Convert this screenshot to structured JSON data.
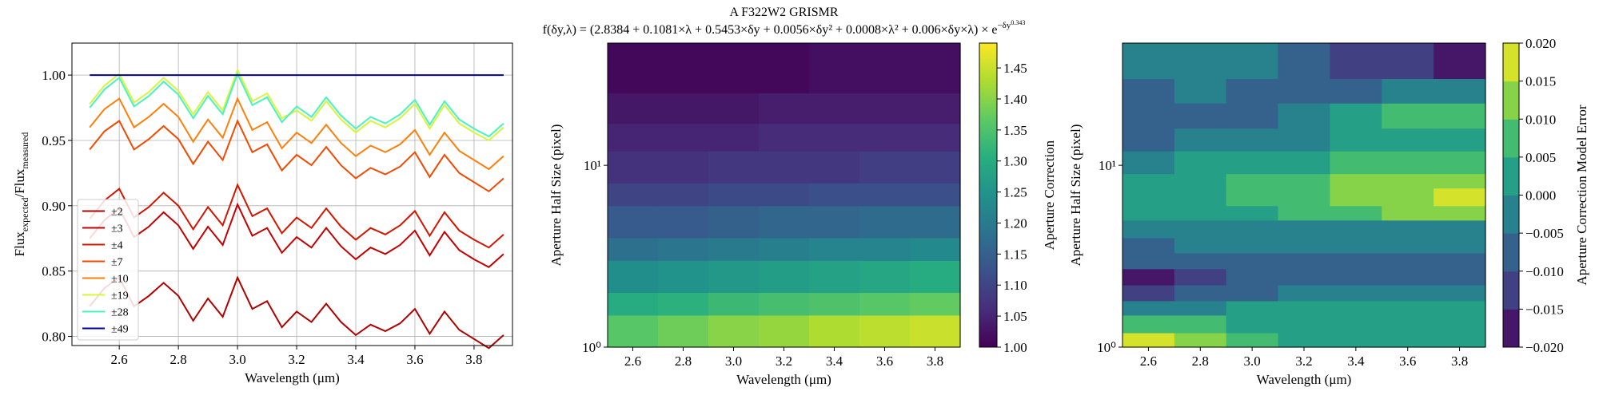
{
  "chart_data": [
    {
      "type": "line",
      "xlabel": "Wavelength (μm)",
      "ylabel": [
        "Flux",
        "expected",
        "/Flux",
        "measured"
      ],
      "x": [
        2.5,
        2.55,
        2.6,
        2.65,
        2.7,
        2.75,
        2.8,
        2.85,
        2.9,
        2.95,
        3.0,
        3.05,
        3.1,
        3.15,
        3.2,
        3.25,
        3.3,
        3.35,
        3.4,
        3.45,
        3.5,
        3.55,
        3.6,
        3.65,
        3.7,
        3.75,
        3.8,
        3.85,
        3.9
      ],
      "xlim": [
        2.44,
        3.93
      ],
      "ylim": [
        0.793,
        1.0245
      ],
      "xticks": [
        2.6,
        2.8,
        {
          "value": 3,
          "label": "3.0"
        },
        3.2,
        3.4,
        3.6,
        3.8
      ],
      "yticks": [
        {
          "value": 0.8,
          "label": "0.80"
        },
        0.85,
        {
          "value": 0.9,
          "label": "0.90"
        },
        0.95,
        {
          "value": 1,
          "label": "1.00"
        }
      ],
      "grid": true,
      "legend": "lower left",
      "series": [
        {
          "name": "±2",
          "color": "#b00000",
          "values": [
            0.823,
            0.837,
            0.845,
            0.823,
            0.831,
            0.841,
            0.831,
            0.812,
            0.829,
            0.815,
            0.845,
            0.821,
            0.827,
            0.807,
            0.819,
            0.811,
            0.825,
            0.811,
            0.801,
            0.809,
            0.804,
            0.81,
            0.821,
            0.802,
            0.819,
            0.805,
            0.798,
            0.791,
            0.801
          ]
        },
        {
          "name": "±3",
          "color": "#c40000",
          "values": [
            0.875,
            0.889,
            0.898,
            0.876,
            0.884,
            0.895,
            0.885,
            0.867,
            0.884,
            0.87,
            0.901,
            0.877,
            0.883,
            0.864,
            0.876,
            0.868,
            0.883,
            0.869,
            0.859,
            0.868,
            0.863,
            0.87,
            0.881,
            0.862,
            0.88,
            0.866,
            0.859,
            0.853,
            0.863
          ]
        },
        {
          "name": "±4",
          "color": "#d41500",
          "values": [
            0.89,
            0.904,
            0.913,
            0.891,
            0.899,
            0.91,
            0.9,
            0.882,
            0.899,
            0.885,
            0.916,
            0.892,
            0.898,
            0.879,
            0.891,
            0.883,
            0.898,
            0.884,
            0.874,
            0.883,
            0.878,
            0.885,
            0.896,
            0.877,
            0.895,
            0.881,
            0.874,
            0.868,
            0.878
          ]
        },
        {
          "name": "±7",
          "color": "#f24a00",
          "values": [
            0.943,
            0.957,
            0.965,
            0.943,
            0.951,
            0.961,
            0.951,
            0.932,
            0.949,
            0.935,
            0.965,
            0.941,
            0.947,
            0.927,
            0.939,
            0.931,
            0.945,
            0.931,
            0.921,
            0.929,
            0.924,
            0.93,
            0.941,
            0.922,
            0.939,
            0.925,
            0.918,
            0.911,
            0.921
          ]
        },
        {
          "name": "±10",
          "color": "#ff7f0a",
          "values": [
            0.96,
            0.974,
            0.982,
            0.96,
            0.968,
            0.978,
            0.968,
            0.949,
            0.966,
            0.952,
            0.982,
            0.958,
            0.964,
            0.944,
            0.956,
            0.948,
            0.962,
            0.948,
            0.938,
            0.946,
            0.941,
            0.947,
            0.958,
            0.939,
            0.956,
            0.942,
            0.935,
            0.928,
            0.938
          ]
        },
        {
          "name": "±19",
          "color": "#d8f53c",
          "values": [
            0.978,
            0.992,
            1.001,
            0.979,
            0.987,
            0.998,
            0.988,
            0.97,
            0.987,
            0.973,
            1.004,
            0.98,
            0.986,
            0.967,
            0.973,
            0.965,
            0.98,
            0.966,
            0.956,
            0.965,
            0.96,
            0.967,
            0.978,
            0.959,
            0.977,
            0.963,
            0.956,
            0.95,
            0.96
          ]
        },
        {
          "name": "±28",
          "color": "#45f5c0",
          "values": [
            0.975,
            0.989,
            0.998,
            0.976,
            0.984,
            0.995,
            0.985,
            0.967,
            0.984,
            0.97,
            1.001,
            0.977,
            0.983,
            0.964,
            0.976,
            0.968,
            0.983,
            0.969,
            0.959,
            0.968,
            0.963,
            0.97,
            0.981,
            0.962,
            0.98,
            0.966,
            0.959,
            0.953,
            0.963
          ]
        },
        {
          "name": "±49",
          "color": "#00009a",
          "values": [
            1,
            1,
            1,
            1,
            1,
            1,
            1,
            1,
            1,
            1,
            1,
            1,
            1,
            1,
            1,
            1,
            1,
            1,
            1,
            1,
            1,
            1,
            1,
            1,
            1,
            1,
            1,
            1,
            1
          ]
        }
      ]
    },
    {
      "type": "heatmap",
      "title": "A F322W2 GRISMR",
      "subtitle": [
        "f(δy,λ) = (2.8384 + 0.1081×λ + 0.5453×δy + 0.0056×δy² + 0.0008×λ² + 0.006×δy×λ) × e",
        "−δy",
        "0.343"
      ],
      "xlabel": "Wavelength (μm)",
      "ylabel": "Aperture Half Size (pixel)",
      "x_edges": [
        2.5,
        2.7,
        2.9,
        3.1,
        3.3,
        3.5,
        3.7,
        3.9
      ],
      "y_edges": [
        1,
        1.5,
        2,
        3,
        4,
        6,
        8,
        12,
        17,
        25,
        47
      ],
      "z": [
        [
          1.36,
          1.38,
          1.4,
          1.41,
          1.43,
          1.44,
          1.45
        ],
        [
          1.3,
          1.31,
          1.33,
          1.34,
          1.35,
          1.36,
          1.37
        ],
        [
          1.24,
          1.25,
          1.26,
          1.27,
          1.28,
          1.29,
          1.3
        ],
        [
          1.18,
          1.19,
          1.2,
          1.21,
          1.22,
          1.22,
          1.23
        ],
        [
          1.14,
          1.14,
          1.15,
          1.16,
          1.16,
          1.17,
          1.17
        ],
        [
          1.1,
          1.1,
          1.11,
          1.11,
          1.12,
          1.12,
          1.12
        ],
        [
          1.07,
          1.07,
          1.08,
          1.08,
          1.08,
          1.09,
          1.09
        ],
        [
          1.05,
          1.05,
          1.05,
          1.06,
          1.06,
          1.06,
          1.06
        ],
        [
          1.03,
          1.03,
          1.03,
          1.04,
          1.04,
          1.04,
          1.04
        ],
        [
          1.01,
          1.01,
          1.01,
          1.01,
          1.02,
          1.02,
          1.02
        ]
      ],
      "xlim": [
        2.5,
        3.9
      ],
      "ylim": [
        1,
        47
      ],
      "y_scale": "log",
      "xticks": [
        2.6,
        2.8,
        {
          "value": 3,
          "label": "3.0"
        },
        3.2,
        3.4,
        3.6,
        3.8
      ],
      "yticks": [
        {
          "value": 1,
          "label": "10⁰"
        },
        {
          "value": 10,
          "label": "10¹"
        }
      ],
      "colormap": "viridis",
      "colorbar": {
        "label": "Aperture Correction",
        "lim": [
          1,
          1.49
        ],
        "ticks": [
          {
            "value": 1,
            "label": "1.00"
          },
          1.05,
          {
            "value": 1.1,
            "label": "1.10"
          },
          1.15,
          {
            "value": 1.2,
            "label": "1.20"
          },
          1.25,
          {
            "value": 1.3,
            "label": "1.30"
          },
          1.35,
          {
            "value": 1.4,
            "label": "1.40"
          },
          1.45
        ]
      }
    },
    {
      "type": "contourf",
      "xlabel": "Wavelength (μm)",
      "ylabel": "Aperture Half Size (pixel)",
      "x_edges": [
        2.5,
        2.7,
        2.9,
        3.1,
        3.3,
        3.5,
        3.7,
        3.9
      ],
      "y_edges": [
        1,
        1.2,
        1.5,
        1.8,
        2.2,
        2.7,
        3.3,
        4,
        5,
        6,
        7.5,
        9,
        12,
        16,
        22,
        30,
        47
      ],
      "z": [
        [
          0.017,
          0.012,
          0.006,
          0.003,
          0.002,
          0.002,
          0.002
        ],
        [
          0.007,
          0.006,
          0.004,
          0.002,
          0.002,
          0.002,
          0.002
        ],
        [
          -0.003,
          -0.002,
          0,
          0.001,
          0.001,
          0.001,
          0.001
        ],
        [
          -0.011,
          -0.009,
          -0.006,
          -0.004,
          -0.003,
          -0.003,
          -0.003
        ],
        [
          -0.016,
          -0.013,
          -0.009,
          -0.007,
          -0.006,
          -0.006,
          -0.006
        ],
        [
          -0.009,
          -0.008,
          -0.007,
          -0.006,
          -0.006,
          -0.006,
          -0.006
        ],
        [
          -0.006,
          -0.005,
          -0.004,
          -0.004,
          -0.004,
          -0.004,
          -0.004
        ],
        [
          -0.003,
          -0.002,
          -0.001,
          -0.001,
          -0.001,
          -0.001,
          -0.001
        ],
        [
          0.001,
          0.002,
          0.004,
          0.006,
          0.008,
          0.01,
          0.011
        ],
        [
          0.002,
          0.004,
          0.006,
          0.009,
          0.012,
          0.014,
          0.018
        ],
        [
          0.001,
          0.003,
          0.005,
          0.008,
          0.01,
          0.012,
          0.014
        ],
        [
          -0.001,
          0,
          0.002,
          0.004,
          0.006,
          0.007,
          0.008
        ],
        [
          -0.006,
          -0.005,
          -0.003,
          -0.001,
          0.001,
          0.002,
          0.003
        ],
        [
          -0.009,
          -0.008,
          -0.006,
          -0.004,
          0.002,
          0.006,
          0.007
        ],
        [
          -0.006,
          -0.005,
          -0.006,
          -0.008,
          -0.006,
          -0.004,
          -0.003
        ],
        [
          -0.002,
          -0.001,
          -0.005,
          -0.009,
          -0.011,
          -0.013,
          -0.016
        ]
      ],
      "levels": [
        -0.02,
        -0.015,
        -0.01,
        -0.005,
        0,
        0.005,
        0.01,
        0.015,
        0.02
      ],
      "xlim": [
        2.5,
        3.9
      ],
      "ylim": [
        1,
        47
      ],
      "y_scale": "log",
      "xticks": [
        2.6,
        2.8,
        {
          "value": 3,
          "label": "3.0"
        },
        3.2,
        3.4,
        3.6,
        3.8
      ],
      "yticks": [
        {
          "value": 1,
          "label": "10⁰"
        },
        {
          "value": 10,
          "label": "10¹"
        }
      ],
      "colormap": "viridis",
      "colorbar": {
        "label": "Aperture Correction Model Error",
        "lim": [
          -0.02,
          0.02
        ],
        "ticks": [
          {
            "value": -0.02,
            "label": "−0.020"
          },
          {
            "value": -0.015,
            "label": "−0.015"
          },
          {
            "value": -0.01,
            "label": "−0.010"
          },
          {
            "value": -0.005,
            "label": "−0.005"
          },
          {
            "value": 0,
            "label": "0.000"
          },
          0.005,
          {
            "value": 0.01,
            "label": "0.010"
          },
          0.015,
          {
            "value": 0.02,
            "label": "0.020"
          }
        ]
      }
    }
  ]
}
